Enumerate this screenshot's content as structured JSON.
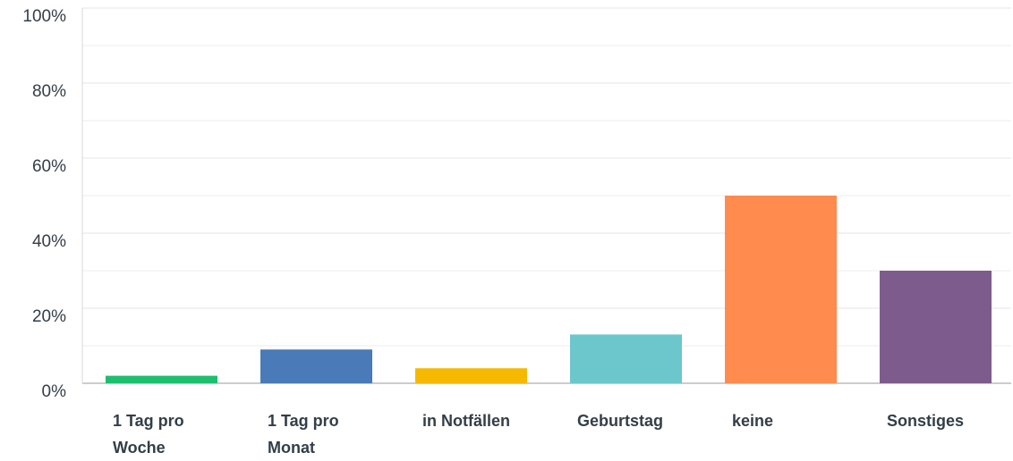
{
  "chart_data": {
    "type": "bar",
    "categories": [
      "1 Tag pro Woche",
      "1 Tag pro Monat",
      "in Notfällen",
      "Geburtstag",
      "keine",
      "Sonstiges"
    ],
    "values": [
      2,
      9,
      4,
      13,
      50,
      30
    ],
    "colors": [
      "#1dbf6e",
      "#4a7ab7",
      "#f6b900",
      "#6cc7cc",
      "#ff8b4f",
      "#7d5c8d"
    ],
    "ylim": [
      0,
      100
    ],
    "yticks": [
      {
        "value": 0,
        "label": "0%"
      },
      {
        "value": 20,
        "label": "20%"
      },
      {
        "value": 40,
        "label": "40%"
      },
      {
        "value": 60,
        "label": "60%"
      },
      {
        "value": 80,
        "label": "80%"
      },
      {
        "value": 100,
        "label": "100%"
      }
    ],
    "minor_yticks": [
      10,
      30,
      50,
      70,
      90
    ],
    "grid": true
  }
}
